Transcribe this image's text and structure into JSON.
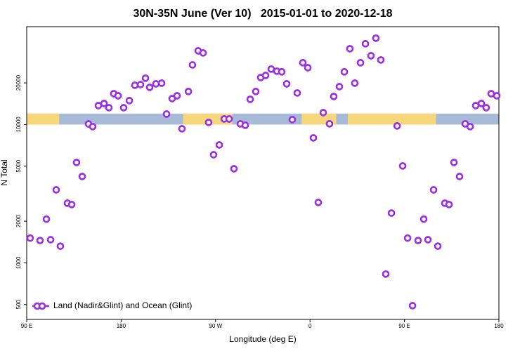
{
  "chart_data": {
    "type": "scatter",
    "title": "30N-35N June (Ver 10)   2015-01-01 to 2020-12-18",
    "xlabel": "Longitude (deg E)",
    "ylabel": "N Total",
    "log_y": true,
    "legend": "lower left",
    "xlim": [
      90,
      540
    ],
    "ylim": [
      390,
      51000
    ],
    "xticks": [
      {
        "value": 90,
        "label": "90 E"
      },
      {
        "value": 180,
        "label": "180"
      },
      {
        "value": 270,
        "label": "90 W"
      },
      {
        "value": 360,
        "label": "0"
      },
      {
        "value": 450,
        "label": "90 E"
      },
      {
        "value": 540,
        "label": "180"
      }
    ],
    "yticks": [
      500,
      1000,
      2000,
      5000,
      10000,
      20000
    ],
    "surface_band": {
      "ylim": [
        10000,
        12000
      ],
      "ocean_color": "#a7bad8",
      "land_color": "#f7d77c",
      "land": [
        [
          90,
          121
        ],
        [
          239,
          286
        ],
        [
          352,
          385
        ],
        [
          396,
          480
        ]
      ]
    },
    "series": [
      {
        "name": "Land (Nadir&Glint) and Ocean (Glint)",
        "color": "#9a2ee0",
        "x": [
          93.3,
          102.7,
          108.8,
          112.8,
          118.1,
          122.1,
          128.8,
          132.9,
          137.5,
          142.9,
          148.9,
          152.9,
          158.3,
          163.7,
          168.3,
          173.0,
          177.1,
          182.4,
          187.8,
          193.1,
          198.5,
          203.2,
          207.2,
          213.2,
          218.6,
          223.3,
          228.6,
          233.3,
          238.0,
          244.1,
          248.0,
          253.4,
          258.1,
          263.4,
          268.1,
          273.5,
          278.2,
          282.9,
          287.5,
          293.6,
          298.3,
          303.0,
          308.3,
          313.0,
          317.7,
          323.0,
          328.4,
          333.1,
          337.8,
          343.1,
          347.8,
          353.2,
          357.9,
          363.2,
          367.9,
          372.6,
          378.6,
          382.6,
          388.0,
          392.7,
          398.0,
          402.7,
          408.1,
          412.8,
          418.1,
          422.8,
          427.5,
          432.2,
          437.6,
          443.0,
          448.3,
          453.0,
          457.7,
          463.0,
          468.4,
          472.4,
          477.8,
          481.8,
          488.5,
          492.5,
          497.2,
          502.5,
          507.9,
          512.6,
          517.9,
          523.3,
          527.9,
          532.6,
          538.0
        ],
        "values": [
          1510,
          1450,
          2070,
          1470,
          3370,
          1320,
          2700,
          2640,
          5320,
          4210,
          10100,
          9660,
          13710,
          14200,
          13240,
          16720,
          16150,
          13240,
          14890,
          19230,
          19460,
          21630,
          18580,
          19690,
          19920,
          11910,
          15410,
          16150,
          9320,
          17330,
          26990,
          34120,
          32950,
          10360,
          6050,
          7120,
          10980,
          10980,
          4790,
          10120,
          9880,
          15230,
          17330,
          21880,
          22650,
          25180,
          24320,
          24040,
          19690,
          10850,
          16920,
          27990,
          25760,
          8010,
          2735,
          12200,
          10120,
          15960,
          18800,
          24040,
          35320,
          19920,
          27990,
          38370,
          31420,
          42100,
          29310,
          830,
          2290,
          9770,
          5020,
          1510,
          490,
          1450,
          2070,
          1470,
          3370,
          1320,
          2700,
          2640,
          5320,
          4210,
          10120,
          9660,
          13710,
          14200,
          13240,
          16720,
          16150
        ]
      }
    ]
  }
}
